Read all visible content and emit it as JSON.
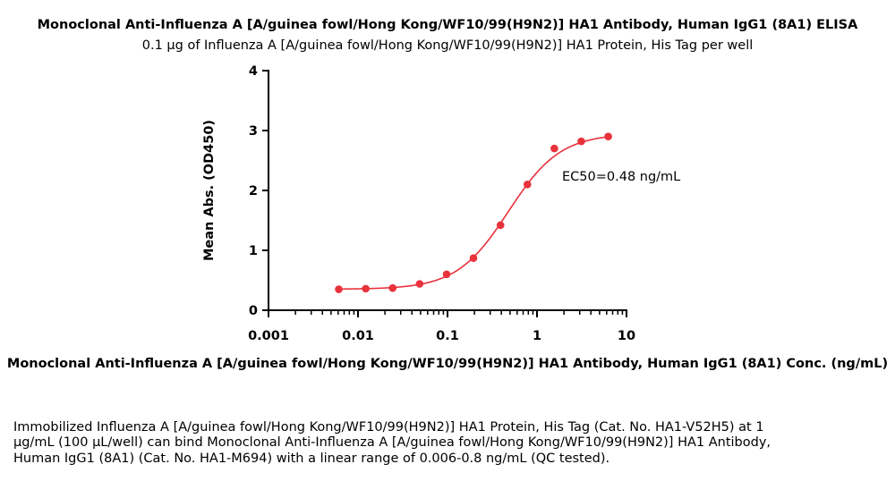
{
  "chart_data": {
    "type": "line",
    "title": "Monoclonal Anti-Influenza A [A/guinea fowl/Hong Kong/WF10/99(H9N2)] HA1 Antibody, Human IgG1 (8A1) ELISA",
    "subtitle": "0.1 μg of Influenza A [A/guinea fowl/Hong Kong/WF10/99(H9N2)] HA1 Protein, His Tag per well",
    "xlabel": "Monoclonal Anti-Influenza A [A/guinea fowl/Hong Kong/WF10/99(H9N2)] HA1 Antibody, Human IgG1 (8A1) Conc. (ng/mL)",
    "ylabel": "Mean Abs. (OD450)",
    "x_scale": "log",
    "xlim": [
      0.001,
      10
    ],
    "ylim": [
      0,
      4
    ],
    "x_ticks": [
      "0.001",
      "0.01",
      "0.1",
      "1",
      "10"
    ],
    "y_ticks": [
      "0",
      "1",
      "2",
      "3",
      "4"
    ],
    "series": [
      {
        "x": [
          0.0061,
          0.0122,
          0.0244,
          0.0488,
          0.0977,
          0.195,
          0.391,
          0.781,
          1.5625,
          3.125,
          6.25
        ],
        "y": [
          0.35,
          0.36,
          0.37,
          0.44,
          0.6,
          0.87,
          1.42,
          2.1,
          2.7,
          2.82,
          2.9
        ],
        "color": "#e8323c"
      }
    ],
    "fit_curve": {
      "bottom": 0.35,
      "top": 2.95,
      "ec50": 0.48,
      "hill": 1.5,
      "color": "#e8323c"
    },
    "annotation": "EC50=0.48 ng/mL",
    "grid": false
  },
  "description": [
    "Immobilized Influenza A [A/guinea fowl/Hong Kong/WF10/99(H9N2)] HA1 Protein, His Tag (Cat. No. HA1-V52H5) at 1",
    "μg/mL (100 μL/well) can bind Monoclonal Anti-Influenza A [A/guinea fowl/Hong Kong/WF10/99(H9N2)] HA1 Antibody,",
    "Human IgG1 (8A1) (Cat. No. HA1-M694) with a linear range of 0.006-0.8 ng/mL (QC tested)."
  ]
}
